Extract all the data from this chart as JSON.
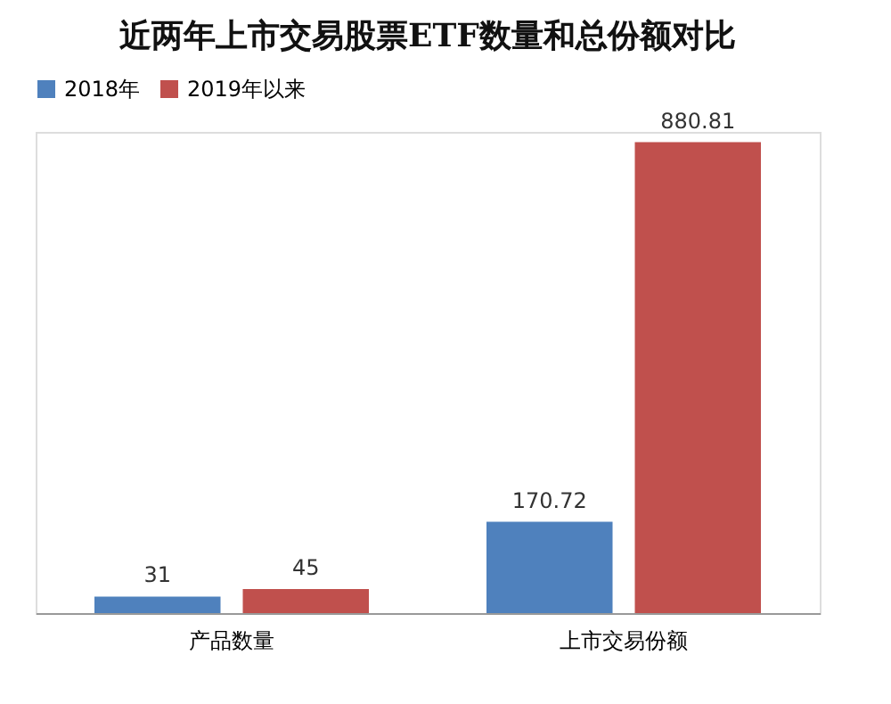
{
  "chart_data": {
    "type": "bar",
    "title": "近两年上市交易股票ETF数量和总份额对比",
    "categories": [
      "产品数量",
      "上市交易份额"
    ],
    "series": [
      {
        "name": "2018年",
        "color": "#4f81bd",
        "values": [
          31,
          170.72
        ]
      },
      {
        "name": "2019年以来",
        "color": "#c0504d",
        "values": [
          45,
          880.81
        ]
      }
    ],
    "data_labels": true,
    "legend": "top",
    "grid": false,
    "tick_labels": "x"
  }
}
